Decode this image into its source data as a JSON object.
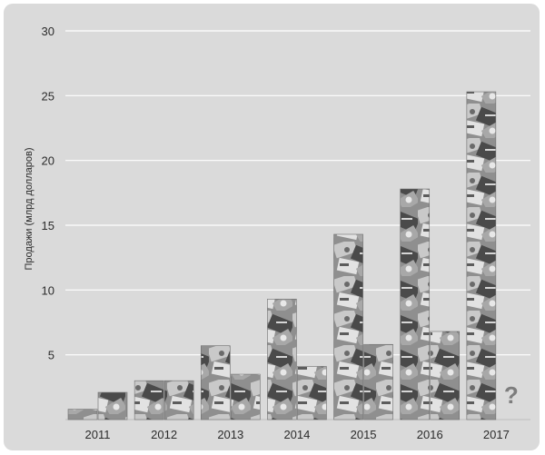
{
  "chart_data": {
    "type": "bar",
    "title": "",
    "xlabel": "",
    "ylabel": "Продажи (млрд долларов)",
    "ylim": [
      0,
      30
    ],
    "yticks": [
      5,
      10,
      15,
      20,
      25,
      30
    ],
    "grid": true,
    "legend": "none",
    "categories": [
      "2011",
      "2012",
      "2013",
      "2014",
      "2015",
      "2016",
      "2017"
    ],
    "series": [
      {
        "values": [
          0.8,
          3.0,
          5.7,
          9.3,
          14.3,
          17.8,
          25.3
        ]
      },
      {
        "values": [
          2.1,
          3.0,
          3.5,
          4.1,
          5.8,
          6.8,
          null
        ]
      }
    ],
    "annotations": [
      {
        "category": "2017",
        "series": 2,
        "text": "?"
      }
    ],
    "colors": {
      "background": "#dadada",
      "grid": "#ffffff",
      "bar_texture_light": "#c4c4c4",
      "bar_texture_dark": "#3a3a3a"
    }
  }
}
